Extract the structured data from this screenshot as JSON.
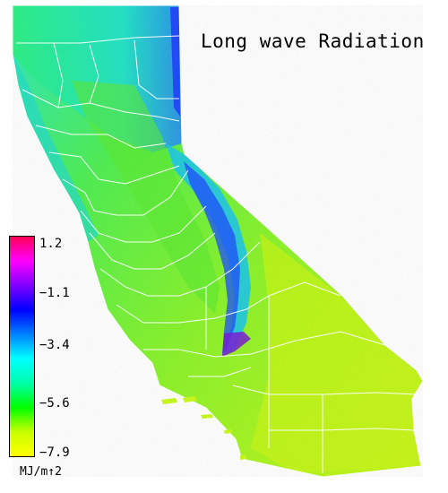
{
  "title": "Long wave Radiation",
  "colorbar": {
    "ticks": [
      "1.2",
      "−1.1",
      "−3.4",
      "−5.6",
      "−7.9"
    ],
    "units": "MJ/m↑2",
    "min": -7.9,
    "max": 1.2,
    "colors": [
      "#ffff00",
      "#c8ff00",
      "#00ff00",
      "#00ffaa",
      "#00ffff",
      "#0080ff",
      "#0000ff",
      "#8000ff",
      "#ff00ff",
      "#ff0055"
    ]
  },
  "map": {
    "region": "California",
    "colors": {
      "desert_yellow_green": "#c4f41c",
      "valley_green": "#5eea33",
      "coast_cyan": "#22ddcc",
      "mountain_blue": "#1f4dff",
      "purple_low": "#7a1fd6",
      "borders": "#ffffff"
    }
  }
}
